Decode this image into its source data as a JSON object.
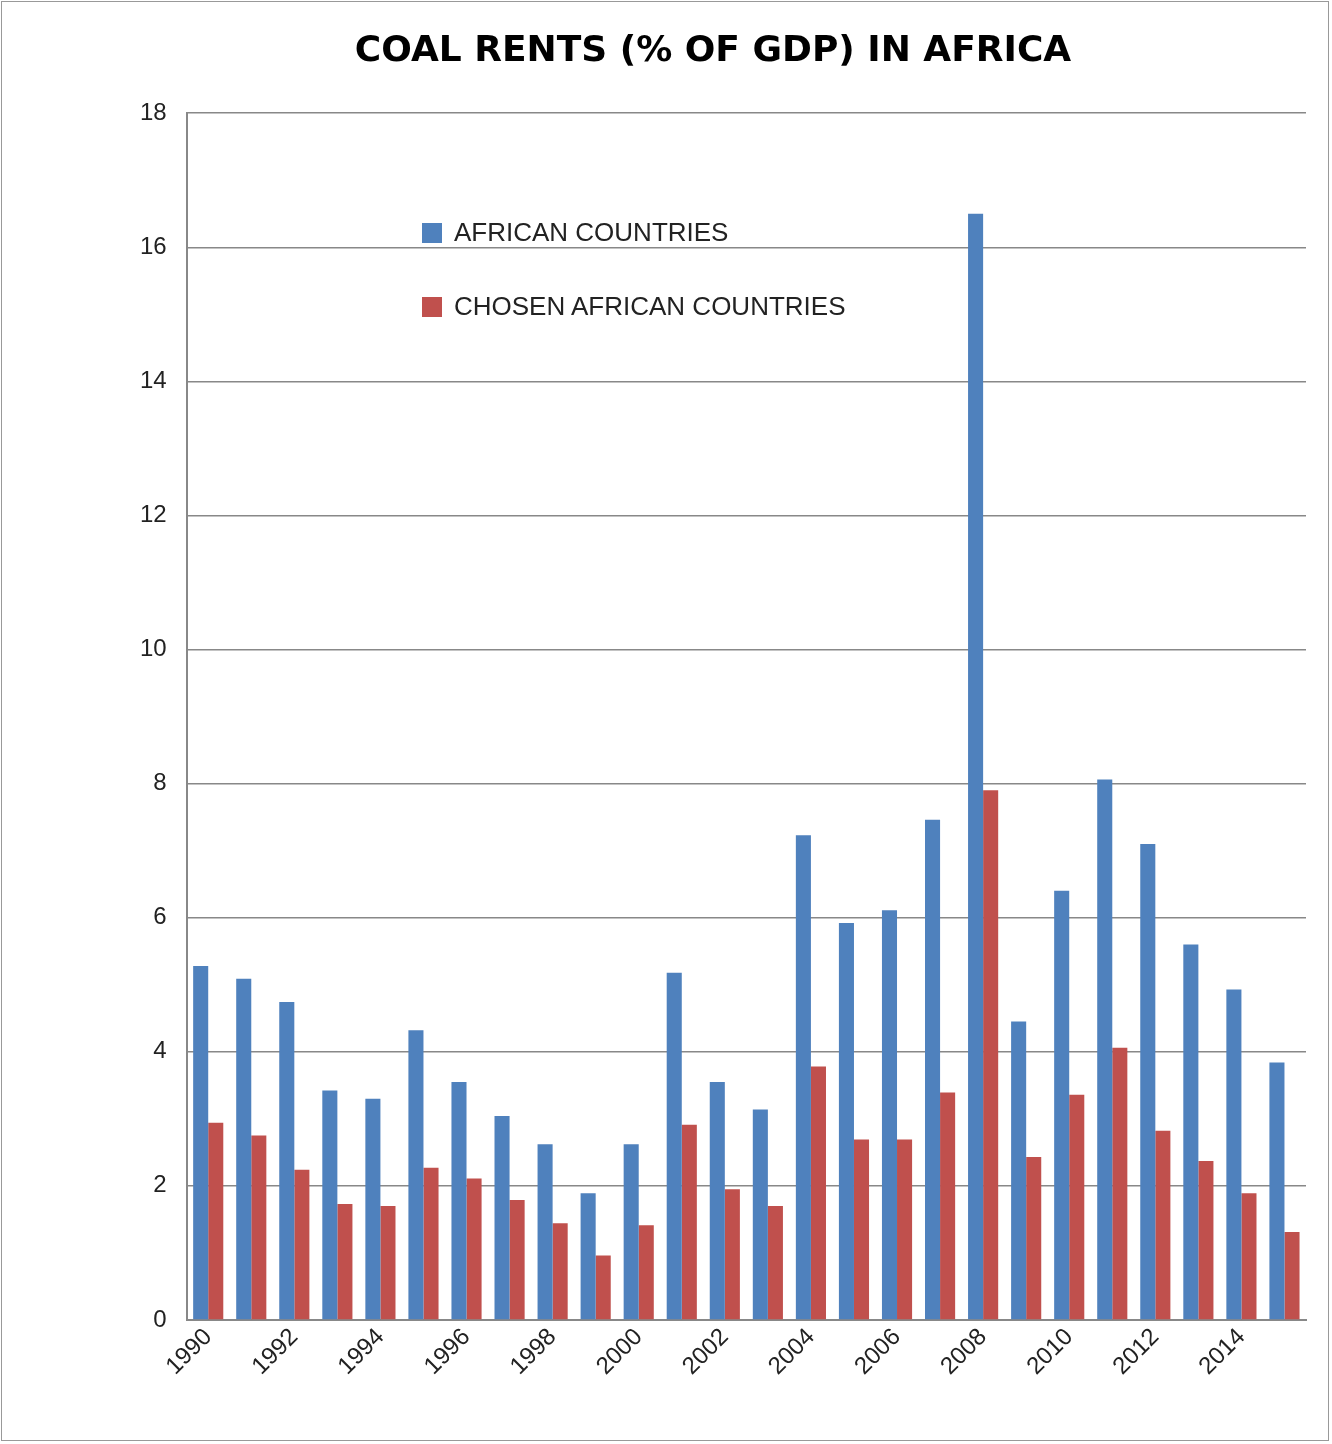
{
  "chart_data": {
    "type": "bar",
    "title": "COAL RENTS (% OF GDP) IN AFRICA",
    "categories": [
      "1990",
      null,
      "1992",
      null,
      "1994",
      null,
      "1996",
      null,
      "1998",
      null,
      "2000",
      null,
      "2002",
      null,
      "2004",
      null,
      "2006",
      null,
      "2008",
      null,
      "2010",
      null,
      "2012",
      null,
      "2014",
      null
    ],
    "series": [
      {
        "name": "AFRICAN COUNTRIES",
        "color": "#4f81bd",
        "values": [
          5.28,
          5.09,
          4.74,
          3.42,
          3.3,
          4.32,
          3.55,
          3.04,
          2.62,
          1.89,
          2.62,
          5.18,
          3.55,
          3.14,
          7.23,
          5.92,
          6.11,
          7.46,
          16.5,
          4.45,
          6.4,
          8.06,
          7.1,
          5.6,
          4.93,
          3.84
        ]
      },
      {
        "name": "CHOSEN AFRICAN COUNTRIES",
        "color": "#c0504d",
        "values": [
          2.94,
          2.75,
          2.24,
          1.73,
          1.7,
          2.27,
          2.11,
          1.79,
          1.44,
          0.96,
          1.41,
          2.91,
          1.95,
          1.7,
          3.78,
          2.69,
          2.69,
          3.39,
          7.9,
          2.43,
          3.36,
          4.06,
          2.82,
          2.37,
          1.89,
          1.31
        ]
      }
    ],
    "ylim": [
      0,
      18
    ],
    "yticks": [
      0,
      2,
      4,
      6,
      8,
      10,
      12,
      14,
      16,
      18
    ],
    "grid": "y",
    "legend": "top left"
  }
}
